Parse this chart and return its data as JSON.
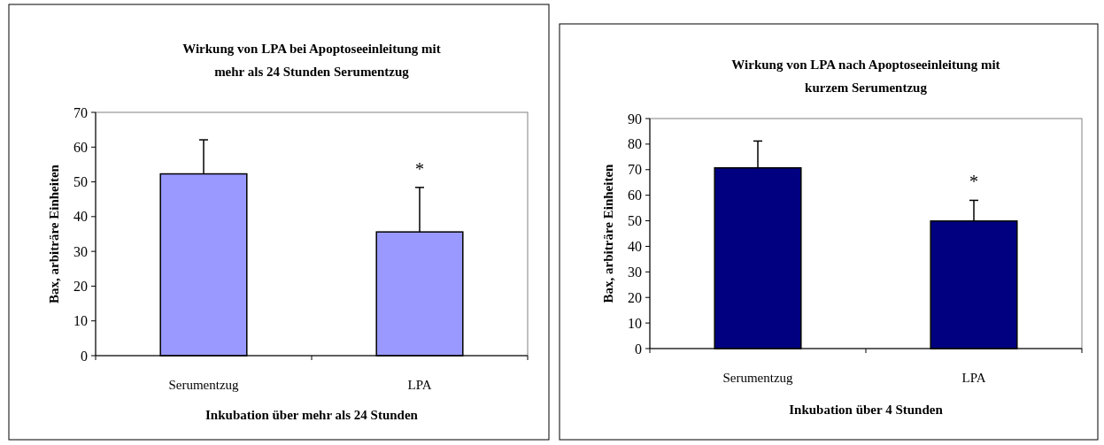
{
  "chart_data": [
    {
      "type": "bar",
      "title": "Wirkung von LPA bei Apoptoseeinleitung mit\nmehr als 24 Stunden Serumentzug",
      "xlabel": "Inkubation über mehr als 24 Stunden",
      "ylabel": "Bax, arbiträre Einheiten",
      "categories": [
        "Serumentzug",
        "LPA"
      ],
      "values": [
        52.3,
        35.6
      ],
      "errors": [
        [
          52.3,
          62.1
        ],
        [
          35.6,
          48.4
        ]
      ],
      "color": "#9999ff",
      "ylim": [
        0,
        70
      ],
      "yticks": [
        0,
        10,
        20,
        30,
        40,
        50,
        60,
        70
      ],
      "grid": false,
      "annotations": [
        "*"
      ]
    },
    {
      "type": "bar",
      "title": "Wirkung von LPA nach Apoptoseeinleitung mit\nkurzem Serumentzug",
      "xlabel": "Inkubation über 4 Stunden",
      "ylabel": "Bax, arbiträre Einheiten",
      "categories": [
        "Serumentzug",
        "LPA"
      ],
      "values": [
        70.7,
        49.9
      ],
      "errors": [
        [
          70.7,
          81.2
        ],
        [
          49.9,
          58.0
        ]
      ],
      "color": "#000080",
      "ylim": [
        0,
        90
      ],
      "yticks": [
        0,
        10,
        20,
        30,
        40,
        50,
        60,
        70,
        80,
        90
      ],
      "grid": false,
      "annotations": [
        "*"
      ]
    }
  ]
}
